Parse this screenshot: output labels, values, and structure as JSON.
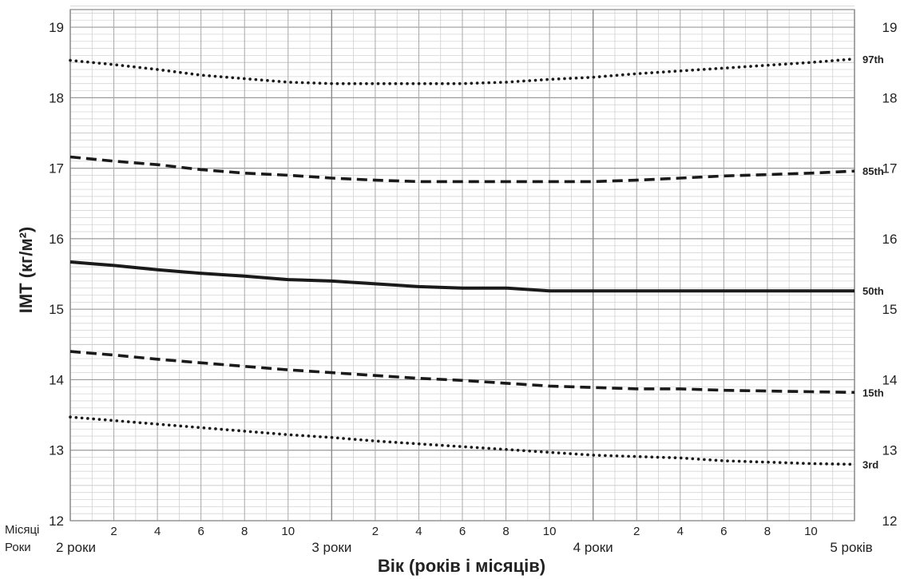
{
  "chart_data": {
    "type": "line",
    "title": "",
    "xlabel": "Вік (років і місяців)",
    "ylabel": "IMT (кг/м²)",
    "ylim": [
      12,
      19.25
    ],
    "xlim": [
      24,
      60
    ],
    "y_ticks": [
      12,
      13,
      14,
      15,
      16,
      17,
      18,
      19
    ],
    "y_tick_labels": [
      "12",
      "13",
      "14",
      "15",
      "16",
      "17",
      "18",
      "19"
    ],
    "row_titles": {
      "months": "Місяці",
      "years": "Роки"
    },
    "month_ticks": [
      {
        "x": 26,
        "label": "2"
      },
      {
        "x": 28,
        "label": "4"
      },
      {
        "x": 30,
        "label": "6"
      },
      {
        "x": 32,
        "label": "8"
      },
      {
        "x": 34,
        "label": "10"
      },
      {
        "x": 38,
        "label": "2"
      },
      {
        "x": 40,
        "label": "4"
      },
      {
        "x": 42,
        "label": "6"
      },
      {
        "x": 44,
        "label": "8"
      },
      {
        "x": 46,
        "label": "10"
      },
      {
        "x": 50,
        "label": "2"
      },
      {
        "x": 52,
        "label": "4"
      },
      {
        "x": 54,
        "label": "6"
      },
      {
        "x": 56,
        "label": "8"
      },
      {
        "x": 58,
        "label": "10"
      }
    ],
    "year_ticks": [
      {
        "x": 24,
        "label": "2 роки"
      },
      {
        "x": 36,
        "label": "3 роки"
      },
      {
        "x": 48,
        "label": "4 роки"
      },
      {
        "x": 60,
        "label": "5 років"
      }
    ],
    "grid": true,
    "x": [
      24,
      26,
      28,
      30,
      32,
      34,
      36,
      38,
      40,
      42,
      44,
      46,
      48,
      50,
      52,
      54,
      56,
      58,
      60
    ],
    "series": [
      {
        "name": "97th",
        "style": "dotted",
        "values": [
          18.53,
          18.47,
          18.4,
          18.32,
          18.27,
          18.22,
          18.2,
          18.2,
          18.2,
          18.2,
          18.22,
          18.26,
          18.29,
          18.34,
          18.38,
          18.42,
          18.46,
          18.5,
          18.55
        ]
      },
      {
        "name": "85th",
        "style": "dashed",
        "values": [
          17.16,
          17.1,
          17.05,
          16.98,
          16.93,
          16.9,
          16.86,
          16.83,
          16.81,
          16.81,
          16.81,
          16.81,
          16.81,
          16.83,
          16.86,
          16.89,
          16.91,
          16.93,
          16.96
        ]
      },
      {
        "name": "50th",
        "style": "solid",
        "values": [
          15.67,
          15.62,
          15.56,
          15.51,
          15.47,
          15.42,
          15.4,
          15.36,
          15.32,
          15.3,
          15.3,
          15.26,
          15.26,
          15.26,
          15.26,
          15.26,
          15.26,
          15.26,
          15.26
        ]
      },
      {
        "name": "15th",
        "style": "dashed",
        "values": [
          14.4,
          14.35,
          14.29,
          14.24,
          14.19,
          14.14,
          14.1,
          14.06,
          14.02,
          13.99,
          13.95,
          13.91,
          13.89,
          13.87,
          13.87,
          13.85,
          13.84,
          13.83,
          13.82
        ]
      },
      {
        "name": "3rd",
        "style": "dotted",
        "values": [
          13.47,
          13.42,
          13.37,
          13.32,
          13.27,
          13.22,
          13.18,
          13.13,
          13.09,
          13.05,
          13.01,
          12.97,
          12.93,
          12.91,
          12.89,
          12.85,
          12.83,
          12.81,
          12.8
        ]
      }
    ]
  }
}
